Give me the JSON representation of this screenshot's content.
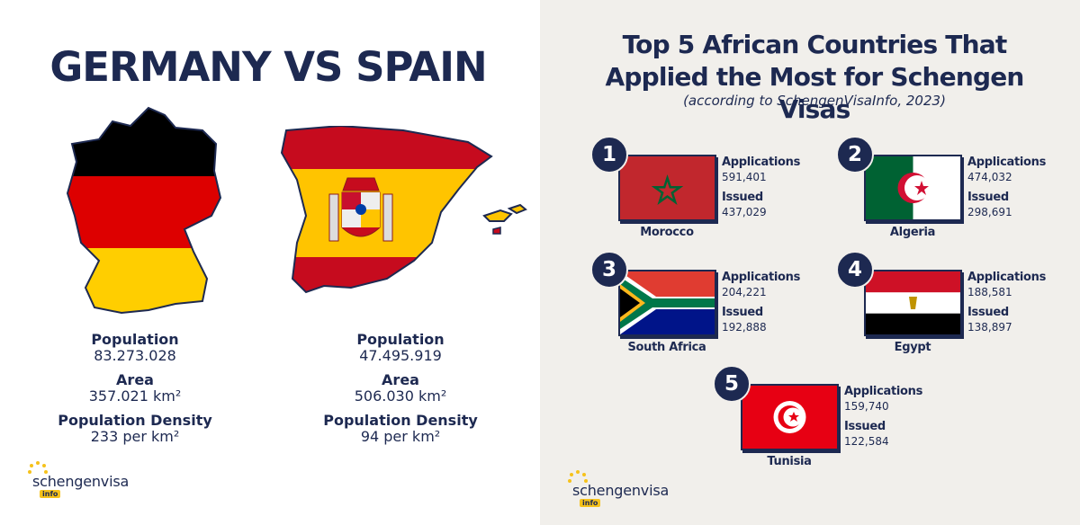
{
  "left": {
    "title": "GERMANY VS SPAIN",
    "countries": [
      {
        "population_label": "Population",
        "population": "83.273.028",
        "area_label": "Area",
        "area": "357.021 km²",
        "density_label": "Population Density",
        "density": "233 per km²"
      },
      {
        "population_label": "Population",
        "population": "47.495.919",
        "area_label": "Area",
        "area": "506.030 km²",
        "density_label": "Population Density",
        "density": "94 per km²"
      }
    ],
    "logo": {
      "text": "schengenvisa",
      "tag": "info"
    }
  },
  "right": {
    "title": "Top 5 African Countries That Applied the Most for Schengen Visas",
    "subtitle": "(according to SchengenVisaInfo, 2023)",
    "items": [
      {
        "rank": "1",
        "name": "Morocco",
        "applications_label": "Applications",
        "applications": "591,401",
        "issued_label": "Issued",
        "issued": "437,029"
      },
      {
        "rank": "2",
        "name": "Algeria",
        "applications_label": "Applications",
        "applications": "474,032",
        "issued_label": "Issued",
        "issued": "298,691"
      },
      {
        "rank": "3",
        "name": "South Africa",
        "applications_label": "Applications",
        "applications": "204,221",
        "issued_label": "Issued",
        "issued": "192,888"
      },
      {
        "rank": "4",
        "name": "Egypt",
        "applications_label": "Applications",
        "applications": "188,581",
        "issued_label": "Issued",
        "issued": "138,897"
      },
      {
        "rank": "5",
        "name": "Tunisia",
        "applications_label": "Applications",
        "applications": "159,740",
        "issued_label": "Issued",
        "issued": "122,584"
      }
    ],
    "logo": {
      "text": "schengenvisa",
      "tag": "info"
    }
  }
}
